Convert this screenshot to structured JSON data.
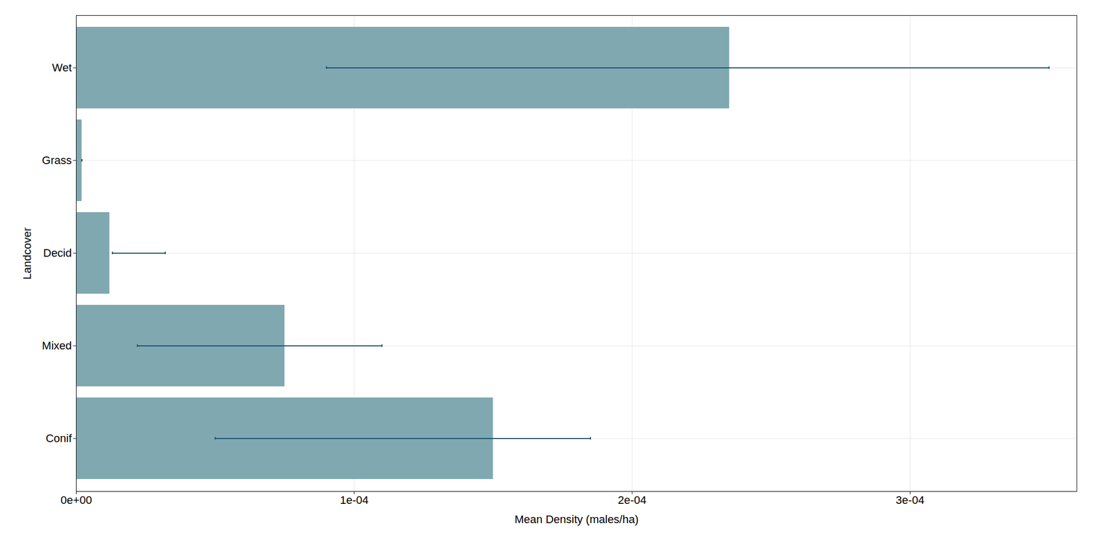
{
  "chart_data": {
    "type": "bar",
    "orientation": "horizontal",
    "categories": [
      "Wet",
      "Grass",
      "Decid",
      "Mixed",
      "Conif"
    ],
    "values": [
      0.000235,
      2e-06,
      1.2e-05,
      7.5e-05,
      0.00015
    ],
    "color": "#7fa8b0",
    "error_bars": {
      "from": [
        9e-05,
        2e-06,
        1.3e-05,
        2.2e-05,
        5e-05
      ],
      "to": [
        0.00035,
        2e-06,
        3.2e-05,
        0.00011,
        0.000185
      ],
      "color": "#1a4f6e"
    },
    "xlabel": "Mean Density (males/ha)",
    "ylabel": "Landcover",
    "xlim": [
      0,
      0.00036
    ],
    "xticks": [
      {
        "value": 0,
        "label": "0e+00"
      },
      {
        "value": 0.0001,
        "label": "1e-04"
      },
      {
        "value": 0.0002,
        "label": "2e-04"
      },
      {
        "value": 0.0003,
        "label": "3e-04"
      }
    ],
    "grid": true
  }
}
